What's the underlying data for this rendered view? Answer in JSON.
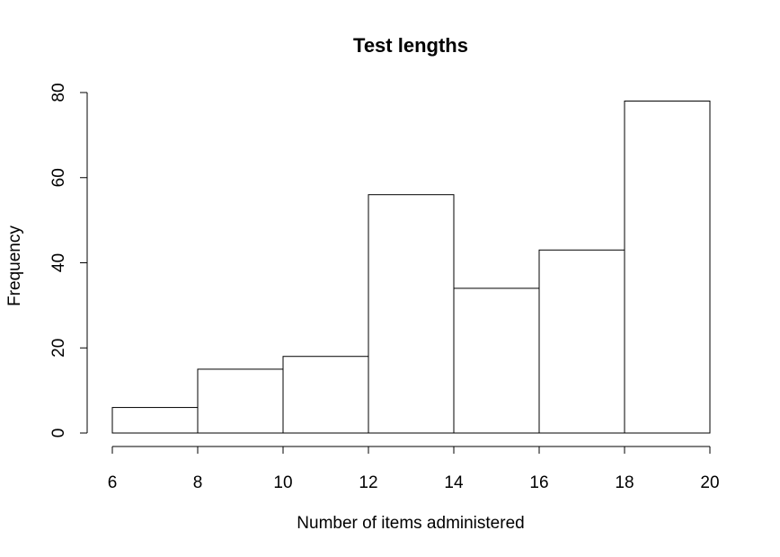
{
  "chart_data": {
    "type": "bar",
    "title": "Test lengths",
    "xlabel": "Number of items administered",
    "ylabel": "Frequency",
    "bins": [
      {
        "from": 6,
        "to": 8,
        "count": 6
      },
      {
        "from": 8,
        "to": 10,
        "count": 15
      },
      {
        "from": 10,
        "to": 12,
        "count": 18
      },
      {
        "from": 12,
        "to": 14,
        "count": 56
      },
      {
        "from": 14,
        "to": 16,
        "count": 34
      },
      {
        "from": 16,
        "to": 18,
        "count": 43
      },
      {
        "from": 18,
        "to": 20,
        "count": 78
      }
    ],
    "xlim": [
      6,
      20
    ],
    "ylim": [
      0,
      80
    ],
    "x_ticks": [
      6,
      8,
      10,
      12,
      14,
      16,
      18,
      20
    ],
    "y_ticks": [
      0,
      20,
      40,
      60,
      80
    ],
    "grid": false,
    "bar_fill": "#ffffff",
    "bar_stroke": "#000000"
  }
}
